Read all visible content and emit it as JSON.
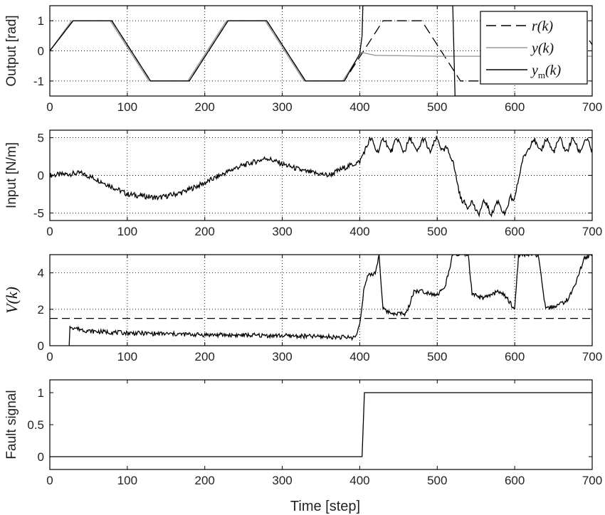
{
  "chart_data": [
    {
      "type": "line",
      "ylabel": "Output [rad]",
      "xlim": [
        0,
        700
      ],
      "ylim": [
        -1.5,
        1.5
      ],
      "xticks": [
        0,
        100,
        200,
        300,
        400,
        500,
        600,
        700
      ],
      "yticks": [
        -1,
        0,
        1
      ],
      "grid": true,
      "legend": {
        "placement": "top-right",
        "entries": [
          {
            "series": "r",
            "label": "r(k)"
          },
          {
            "series": "y",
            "label": "y(k)"
          },
          {
            "series": "ym",
            "label": "y_m(k)"
          }
        ]
      },
      "series": [
        {
          "name": "r(k)",
          "style": "dashed",
          "color": "#000000",
          "x": [
            0,
            30,
            80,
            130,
            180,
            230,
            280,
            330,
            380,
            430,
            480,
            530,
            580,
            630,
            680,
            700
          ],
          "y": [
            0,
            1,
            1,
            -1,
            -1,
            1,
            1,
            -1,
            -1,
            1,
            1,
            -1,
            -1,
            1,
            1,
            0.2
          ]
        },
        {
          "name": "y(k)",
          "style": "solid",
          "color": "#999999",
          "x": [
            0,
            28,
            78,
            128,
            178,
            228,
            278,
            328,
            378,
            402,
            420,
            500,
            700
          ],
          "y": [
            0,
            1,
            1,
            -1,
            -1,
            1,
            1,
            -1,
            -1,
            -0.05,
            -0.15,
            -0.18,
            -0.18
          ]
        },
        {
          "name": "y_m(k)",
          "style": "solid",
          "color": "#000000",
          "x": [
            0,
            30,
            80,
            130,
            180,
            230,
            280,
            330,
            380,
            400,
            403,
            404,
            519,
            520,
            523,
            524,
            700
          ],
          "y": [
            0,
            1,
            1,
            -1,
            -1,
            1,
            1,
            -1,
            -1,
            -0.1,
            0.5,
            1.5,
            1.5,
            1.5,
            -1.5,
            -1.5,
            -1.5
          ]
        }
      ]
    },
    {
      "type": "line",
      "ylabel": "Input [N/m]",
      "xlim": [
        0,
        700
      ],
      "ylim": [
        -6,
        6
      ],
      "xticks": [
        0,
        100,
        200,
        300,
        400,
        500,
        600,
        700
      ],
      "yticks": [
        -5,
        0,
        5
      ],
      "grid": true,
      "series": [
        {
          "name": "u(k)",
          "style": "solid",
          "color": "#000000",
          "x": [
            0,
            40,
            60,
            80,
            100,
            140,
            170,
            200,
            240,
            280,
            300,
            330,
            360,
            380,
            400,
            405,
            410,
            510,
            520,
            530,
            540,
            590,
            600,
            610,
            620,
            700
          ],
          "y": [
            0,
            0.3,
            -0.5,
            -1.5,
            -2.5,
            -3,
            -2.3,
            -1,
            1,
            2.3,
            1.5,
            0.5,
            0,
            1,
            1.8,
            3,
            4,
            4,
            2,
            -3,
            -4.3,
            -4.3,
            -3,
            2,
            4,
            4
          ],
          "oscillation": [
            {
              "from": 410,
              "to": 510,
              "amplitude": 0.8,
              "period": 17
            },
            {
              "from": 540,
              "to": 595,
              "amplitude": 0.8,
              "period": 17
            },
            {
              "from": 620,
              "to": 700,
              "amplitude": 0.8,
              "period": 17
            }
          ]
        }
      ]
    },
    {
      "type": "line",
      "ylabel": "V(k)",
      "xlim": [
        0,
        700
      ],
      "ylim": [
        0,
        5
      ],
      "xticks": [
        0,
        100,
        200,
        300,
        400,
        500,
        600,
        700
      ],
      "yticks": [
        0,
        2,
        4
      ],
      "grid": true,
      "threshold": {
        "y": 1.5,
        "style": "dashed"
      },
      "series": [
        {
          "name": "V(k)",
          "style": "solid",
          "color": "#000000",
          "x": [
            25,
            25,
            30,
            50,
            100,
            200,
            300,
            350,
            390,
            395,
            400,
            405,
            410,
            420,
            425,
            430,
            440,
            460,
            470,
            480,
            500,
            510,
            520,
            540,
            545,
            560,
            580,
            590,
            600,
            605,
            630,
            640,
            660,
            670,
            680,
            690,
            700
          ],
          "y": [
            0,
            1.1,
            1.0,
            0.8,
            0.7,
            0.6,
            0.55,
            0.5,
            0.45,
            0.5,
            1.2,
            3.0,
            3.8,
            4.0,
            5.0,
            2.0,
            1.8,
            1.75,
            3.0,
            3.0,
            2.8,
            3.2,
            5.0,
            5.0,
            2.8,
            2.6,
            3.0,
            2.6,
            2.0,
            5.0,
            5.0,
            2.0,
            2.3,
            2.6,
            3.6,
            4.8,
            5.0
          ]
        }
      ]
    },
    {
      "type": "line",
      "ylabel": "Fault signal",
      "xlabel": "Time [step]",
      "xlim": [
        0,
        700
      ],
      "ylim": [
        -0.2,
        1.2
      ],
      "xticks": [
        0,
        100,
        200,
        300,
        400,
        500,
        600,
        700
      ],
      "yticks": [
        0,
        0.5,
        1
      ],
      "grid": false,
      "series": [
        {
          "name": "fault",
          "style": "solid",
          "color": "#000000",
          "x": [
            0,
            403,
            406,
            700
          ],
          "y": [
            0,
            0,
            1,
            1
          ]
        }
      ]
    }
  ]
}
